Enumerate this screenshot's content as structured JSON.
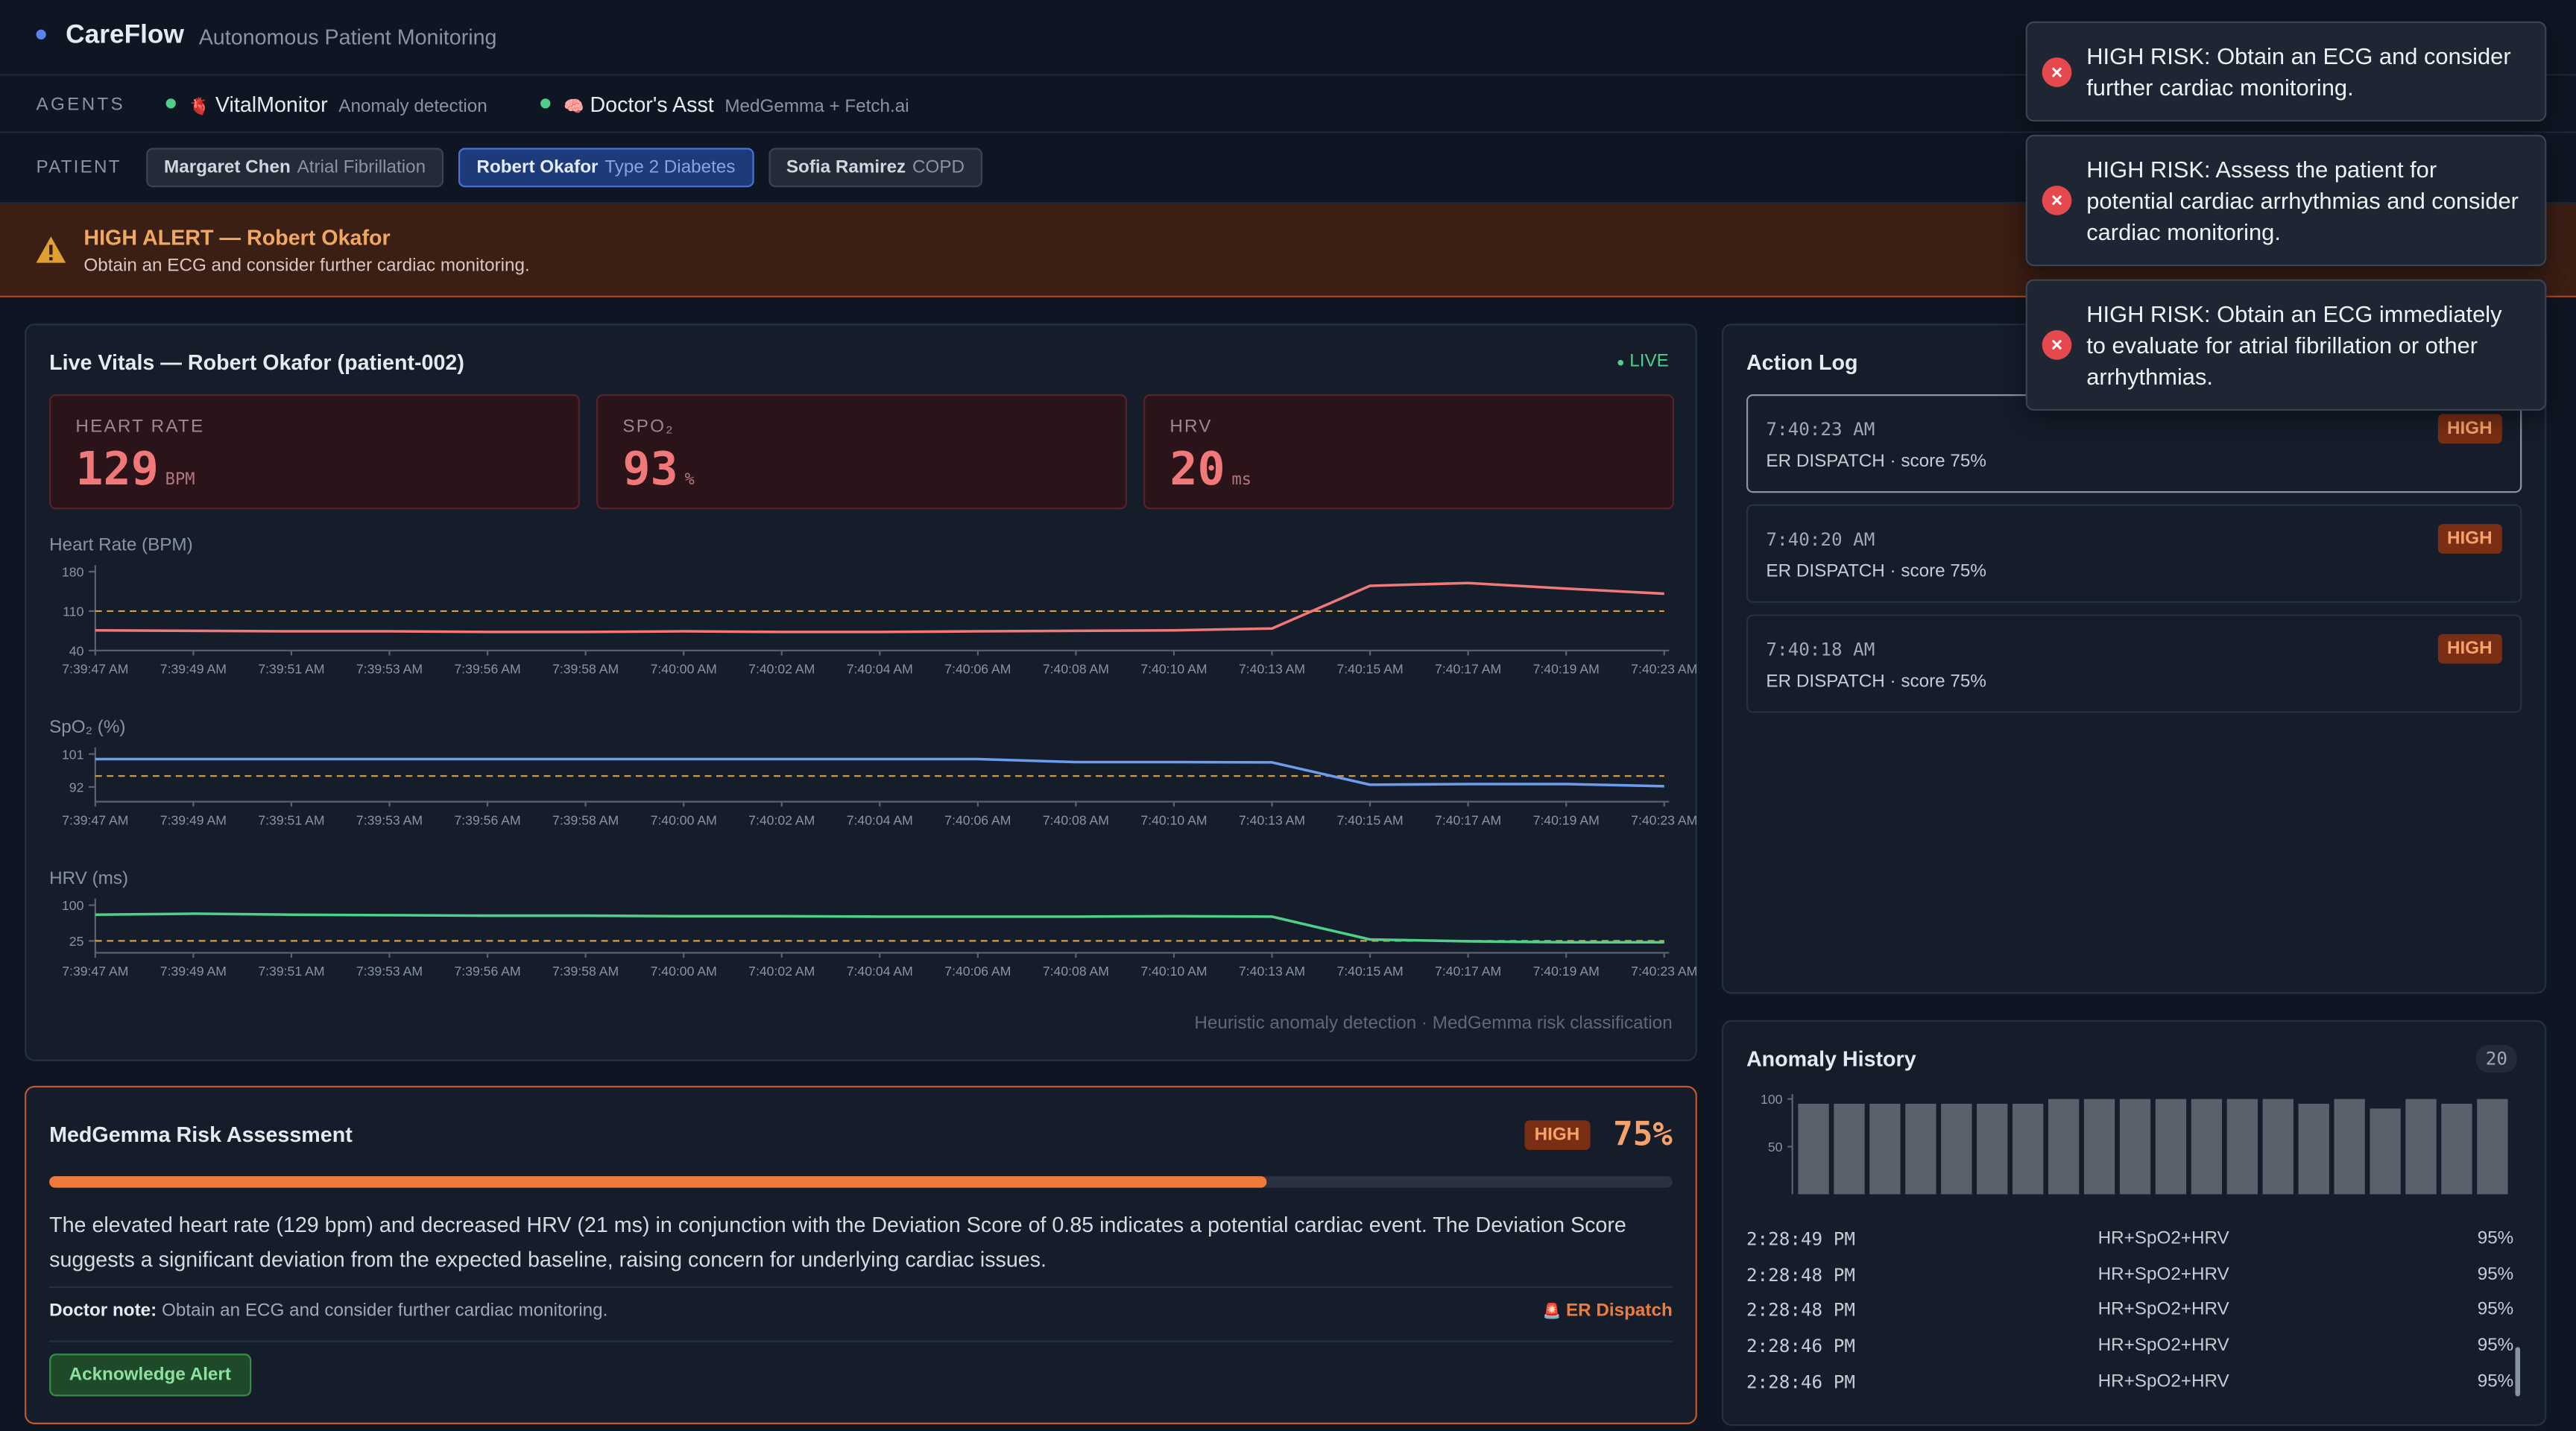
{
  "header": {
    "brand": "CareFlow",
    "subtitle": "Autonomous Patient Monitoring"
  },
  "agents": {
    "label": "AGENTS",
    "items": [
      {
        "icon": "🫀",
        "name": "VitalMonitor",
        "role": "Anomaly detection"
      },
      {
        "icon": "🧠",
        "name": "Doctor's Asst",
        "role": "MedGemma + Fetch.ai"
      }
    ]
  },
  "patients": {
    "label": "PATIENT",
    "items": [
      {
        "name": "Margaret Chen",
        "condition": "Atrial Fibrillation",
        "selected": false
      },
      {
        "name": "Robert Okafor",
        "condition": "Type 2 Diabetes",
        "selected": true
      },
      {
        "name": "Sofia Ramirez",
        "condition": "COPD",
        "selected": false
      }
    ]
  },
  "alert": {
    "title": "HIGH ALERT — Robert Okafor",
    "message": "Obtain an ECG and consider further cardiac monitoring."
  },
  "vitals": {
    "title": "Live Vitals — Robert Okafor (patient-002)",
    "status": "LIVE",
    "cards": [
      {
        "label": "HEART RATE",
        "value": 129,
        "unit": "BPM"
      },
      {
        "label": "SPO₂",
        "value": 93,
        "unit": "%"
      },
      {
        "label": "HRV",
        "value": 20,
        "unit": "ms"
      }
    ],
    "footer": "Heuristic anomaly detection · MedGemma risk classification"
  },
  "charts": [
    {
      "type": "line",
      "title": "Heart Rate (BPM)",
      "color": "#f07878",
      "threshold": 110,
      "threshold_color": "#d9a040",
      "ylim": [
        40,
        180
      ],
      "yticks": [
        40,
        110,
        180
      ],
      "categories": [
        "7:39:47 AM",
        "7:39:49 AM",
        "7:39:51 AM",
        "7:39:53 AM",
        "7:39:56 AM",
        "7:39:58 AM",
        "7:40:00 AM",
        "7:40:02 AM",
        "7:40:04 AM",
        "7:40:06 AM",
        "7:40:08 AM",
        "7:40:10 AM",
        "7:40:13 AM",
        "7:40:15 AM",
        "7:40:17 AM",
        "7:40:19 AM",
        "7:40:23 AM"
      ],
      "values": [
        76,
        75,
        74,
        74,
        73,
        73,
        74,
        73,
        73,
        74,
        75,
        76,
        79,
        155,
        160,
        150,
        141
      ]
    },
    {
      "type": "line",
      "title": "SpO₂ (%)",
      "color": "#6b9cf0",
      "threshold": 95,
      "threshold_color": "#d9a040",
      "ylim": [
        88,
        101
      ],
      "yticks": [
        92,
        101
      ],
      "categories": [
        "7:39:47 AM",
        "7:39:49 AM",
        "7:39:51 AM",
        "7:39:53 AM",
        "7:39:56 AM",
        "7:39:58 AM",
        "7:40:00 AM",
        "7:40:02 AM",
        "7:40:04 AM",
        "7:40:06 AM",
        "7:40:08 AM",
        "7:40:10 AM",
        "7:40:13 AM",
        "7:40:15 AM",
        "7:40:17 AM",
        "7:40:19 AM",
        "7:40:23 AM"
      ],
      "values": [
        99.6,
        99.6,
        99.6,
        99.6,
        99.6,
        99.6,
        99.6,
        99.6,
        99.6,
        99.6,
        98.8,
        98.8,
        98.7,
        92.6,
        92.8,
        92.8,
        92.2
      ]
    },
    {
      "type": "line",
      "title": "HRV (ms)",
      "color": "#4fd08a",
      "threshold": 25,
      "threshold_color": "#d9a040",
      "ylim": [
        0,
        100
      ],
      "yticks": [
        25,
        100
      ],
      "categories": [
        "7:39:47 AM",
        "7:39:49 AM",
        "7:39:51 AM",
        "7:39:53 AM",
        "7:39:56 AM",
        "7:39:58 AM",
        "7:40:00 AM",
        "7:40:02 AM",
        "7:40:04 AM",
        "7:40:06 AM",
        "7:40:08 AM",
        "7:40:10 AM",
        "7:40:13 AM",
        "7:40:15 AM",
        "7:40:17 AM",
        "7:40:19 AM",
        "7:40:23 AM"
      ],
      "values": [
        80,
        82,
        80,
        79,
        78,
        78,
        77,
        77,
        76,
        76,
        76,
        77,
        76,
        28,
        24,
        22,
        22
      ]
    }
  ],
  "action_log": {
    "title": "Action Log",
    "entries": [
      {
        "time": "7:40:23 AM",
        "action": "ER DISPATCH · score 75%",
        "level": "HIGH"
      },
      {
        "time": "7:40:20 AM",
        "action": "ER DISPATCH · score 75%",
        "level": "HIGH"
      },
      {
        "time": "7:40:18 AM",
        "action": "ER DISPATCH · score 75%",
        "level": "HIGH"
      }
    ]
  },
  "anomaly_history": {
    "title": "Anomaly History",
    "count": 20,
    "chart": {
      "type": "bar",
      "color": "#5a606c",
      "ylim": [
        0,
        100
      ],
      "yticks": [
        50,
        100
      ],
      "values": [
        95,
        95,
        95,
        95,
        95,
        95,
        95,
        100,
        100,
        100,
        100,
        100,
        100,
        100,
        95,
        100,
        90,
        100,
        95,
        100
      ]
    },
    "rows": [
      {
        "time": "2:28:49 PM",
        "type": "HR+SpO2+HRV",
        "score": "95%"
      },
      {
        "time": "2:28:48 PM",
        "type": "HR+SpO2+HRV",
        "score": "95%"
      },
      {
        "time": "2:28:48 PM",
        "type": "HR+SpO2+HRV",
        "score": "95%"
      },
      {
        "time": "2:28:46 PM",
        "type": "HR+SpO2+HRV",
        "score": "95%"
      },
      {
        "time": "2:28:46 PM",
        "type": "HR+SpO2+HRV",
        "score": "95%"
      }
    ]
  },
  "risk": {
    "title": "MedGemma Risk Assessment",
    "level": "HIGH",
    "score": {
      "value": 75,
      "label": "75%"
    },
    "summary": "The elevated heart rate (129 bpm) and decreased HRV (21 ms) in conjunction with the Deviation Score of 0.85 indicates a potential cardiac event. The Deviation Score suggests a significant deviation from the expected baseline, raising concern for underlying cardiac issues.",
    "doctor_note_label": "Doctor note:",
    "doctor_note": "Obtain an ECG and consider further cardiac monitoring.",
    "action_icon": "🚨",
    "action": "ER Dispatch",
    "button": "Acknowledge Alert"
  },
  "toasts": [
    "HIGH RISK: Obtain an ECG and consider further cardiac monitoring.",
    "HIGH RISK: Assess the patient for potential cardiac arrhythmias and consider cardiac monitoring.",
    "HIGH RISK: Obtain an ECG immediately to evaluate for atrial fibrillation or other arrhythmias."
  ]
}
